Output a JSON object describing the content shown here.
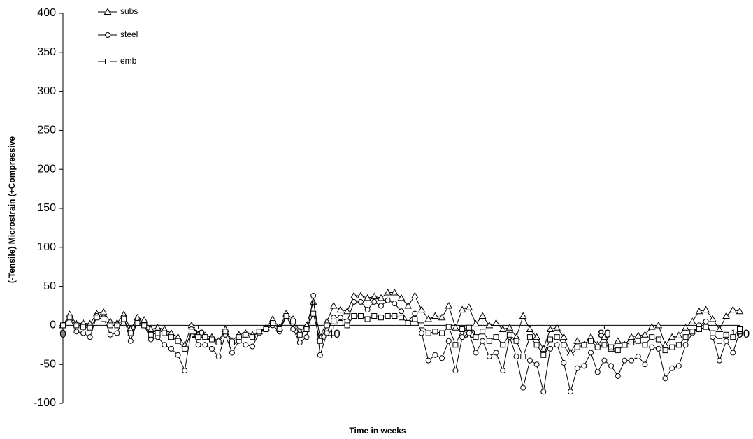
{
  "chart_data": {
    "type": "line",
    "x_label": "Time in weeks",
    "y_label": "(-Tensile) Microstrain (+Compressive",
    "xlim": [
      0,
      100
    ],
    "xticks": [
      0,
      20,
      40,
      60,
      80,
      100
    ],
    "ylim": [
      -100,
      400
    ],
    "yticks": [
      -100,
      -50,
      0,
      50,
      100,
      150,
      200,
      250,
      300,
      350,
      400
    ],
    "legend": "top-left",
    "grid": false,
    "x": [
      0,
      1,
      2,
      3,
      4,
      5,
      6,
      7,
      8,
      9,
      10,
      11,
      12,
      13,
      14,
      15,
      16,
      17,
      18,
      19,
      20,
      21,
      22,
      23,
      24,
      25,
      26,
      27,
      28,
      29,
      30,
      31,
      32,
      33,
      34,
      35,
      36,
      37,
      38,
      39,
      40,
      41,
      42,
      43,
      44,
      45,
      46,
      47,
      48,
      49,
      50,
      51,
      52,
      53,
      54,
      55,
      56,
      57,
      58,
      59,
      60,
      61,
      62,
      63,
      64,
      65,
      66,
      67,
      68,
      69,
      70,
      71,
      72,
      73,
      74,
      75,
      76,
      77,
      78,
      79,
      80,
      81,
      82,
      83,
      84,
      85,
      86,
      87,
      88,
      89,
      90,
      91,
      92,
      93,
      94,
      95,
      96,
      97,
      98,
      99,
      100
    ],
    "series": [
      {
        "name": "subs",
        "color": "#000000",
        "marker": "triangle",
        "values": [
          0,
          14,
          2,
          3,
          2,
          15,
          17,
          5,
          3,
          14,
          -5,
          10,
          7,
          -5,
          -3,
          -5,
          -10,
          -15,
          -25,
          0,
          -12,
          -13,
          -15,
          -20,
          -5,
          -20,
          -12,
          -10,
          -12,
          -8,
          -3,
          8,
          -3,
          15,
          8,
          -8,
          0,
          30,
          -15,
          5,
          25,
          20,
          18,
          38,
          38,
          35,
          37,
          35,
          42,
          42,
          35,
          25,
          38,
          20,
          8,
          12,
          10,
          25,
          -3,
          20,
          23,
          2,
          12,
          0,
          3,
          -5,
          -3,
          -15,
          12,
          -5,
          -15,
          -30,
          -5,
          -3,
          -15,
          -35,
          -20,
          -25,
          -15,
          -25,
          -15,
          -30,
          -20,
          -25,
          -15,
          -13,
          -12,
          -2,
          0,
          -25,
          -15,
          -13,
          -3,
          5,
          18,
          20,
          8,
          -5,
          12,
          20,
          18
        ]
      },
      {
        "name": "steel",
        "color": "#000000",
        "marker": "circle",
        "values": [
          0,
          10,
          -8,
          -10,
          -15,
          12,
          10,
          -12,
          -10,
          10,
          -20,
          5,
          0,
          -18,
          -15,
          -25,
          -30,
          -38,
          -58,
          -5,
          -25,
          -25,
          -30,
          -40,
          -12,
          -35,
          -20,
          -25,
          -27,
          -10,
          -5,
          0,
          -8,
          12,
          -5,
          -22,
          -15,
          38,
          -38,
          -10,
          10,
          10,
          5,
          30,
          30,
          20,
          30,
          25,
          32,
          28,
          18,
          5,
          15,
          -10,
          -45,
          -38,
          -42,
          -20,
          -58,
          -15,
          -10,
          -35,
          -20,
          -40,
          -35,
          -58,
          -15,
          -40,
          -80,
          -45,
          -50,
          -85,
          -30,
          -25,
          -48,
          -85,
          -55,
          -52,
          -35,
          -60,
          -45,
          -52,
          -65,
          -45,
          -45,
          -40,
          -50,
          -28,
          -30,
          -68,
          -55,
          -52,
          -25,
          -10,
          0,
          5,
          -15,
          -45,
          -20,
          -35,
          -8
        ]
      },
      {
        "name": "emb",
        "color": "#000000",
        "marker": "square",
        "values": [
          0,
          10,
          0,
          -2,
          -3,
          10,
          8,
          0,
          0,
          8,
          -10,
          3,
          0,
          -12,
          -10,
          -10,
          -15,
          -20,
          -30,
          -8,
          -15,
          -15,
          -18,
          -22,
          -8,
          -22,
          -15,
          -12,
          -15,
          -8,
          -5,
          3,
          -5,
          12,
          5,
          -12,
          -5,
          15,
          -20,
          0,
          5,
          3,
          0,
          12,
          12,
          8,
          12,
          10,
          12,
          12,
          10,
          3,
          8,
          0,
          -10,
          -8,
          -10,
          -2,
          -25,
          -5,
          -3,
          -15,
          -8,
          -20,
          -15,
          -25,
          -12,
          -20,
          -40,
          -15,
          -25,
          -38,
          -18,
          -15,
          -25,
          -40,
          -28,
          -25,
          -20,
          -28,
          -25,
          -28,
          -32,
          -25,
          -22,
          -20,
          -25,
          -15,
          -18,
          -32,
          -28,
          -25,
          -15,
          -8,
          -5,
          -2,
          -10,
          -20,
          -12,
          -15,
          -5
        ]
      }
    ]
  }
}
